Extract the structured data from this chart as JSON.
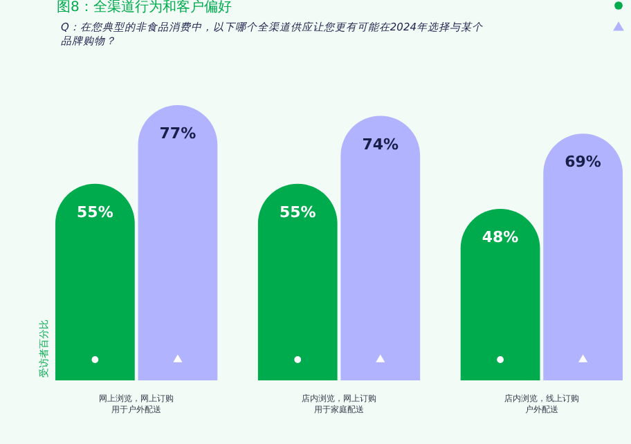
{
  "chart_data": {
    "type": "bar",
    "title": "图8：全渠道行为和客户偏好",
    "subtitle": "Q：在您典型的非食品消费中，以下哪个全渠道供应让您更有可能在2024年选择与某个品牌购物？",
    "ylabel": "受访者百分比",
    "categories": [
      "网上浏览，网上订购用于户外配送",
      "店内浏览，网上订购用于家庭配送",
      "店内浏览，线上订购户外配送"
    ],
    "series": [
      {
        "color": "#00ab4e",
        "marker": "circle",
        "values": [
          55,
          55,
          48
        ],
        "value_labels": [
          "55%",
          "55%",
          "48%"
        ]
      },
      {
        "color": "#b1b3ff",
        "marker": "triangle",
        "values": [
          77,
          74,
          69
        ],
        "value_labels": [
          "77%",
          "74%",
          "69%"
        ]
      }
    ]
  }
}
